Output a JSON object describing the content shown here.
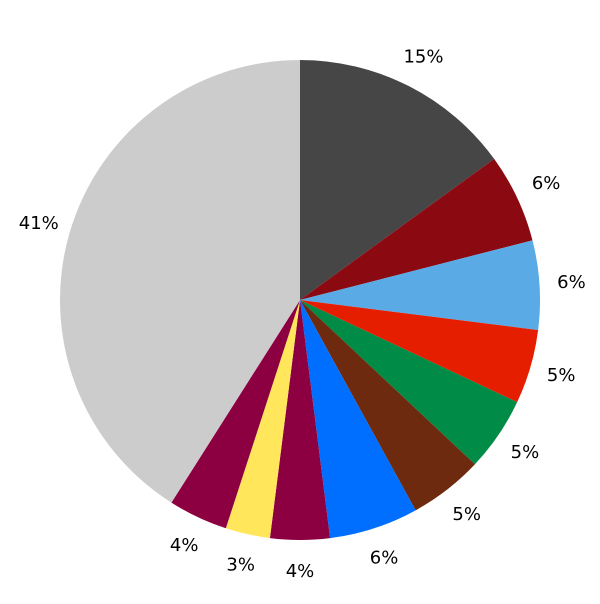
{
  "chart_data": {
    "type": "pie",
    "values": [
      15,
      6,
      6,
      5,
      5,
      5,
      6,
      4,
      3,
      4,
      41
    ],
    "value_labels": [
      "15%",
      "6%",
      "6%",
      "5%",
      "5%",
      "5%",
      "6%",
      "4%",
      "3%",
      "4%",
      "41%"
    ],
    "colors": [
      "#464646",
      "#8b0a12",
      "#5aaae6",
      "#e61e00",
      "#008c46",
      "#6e2a0e",
      "#006eff",
      "#8c0041",
      "#ffe65a",
      "#8c0041",
      "#cccccc"
    ]
  }
}
